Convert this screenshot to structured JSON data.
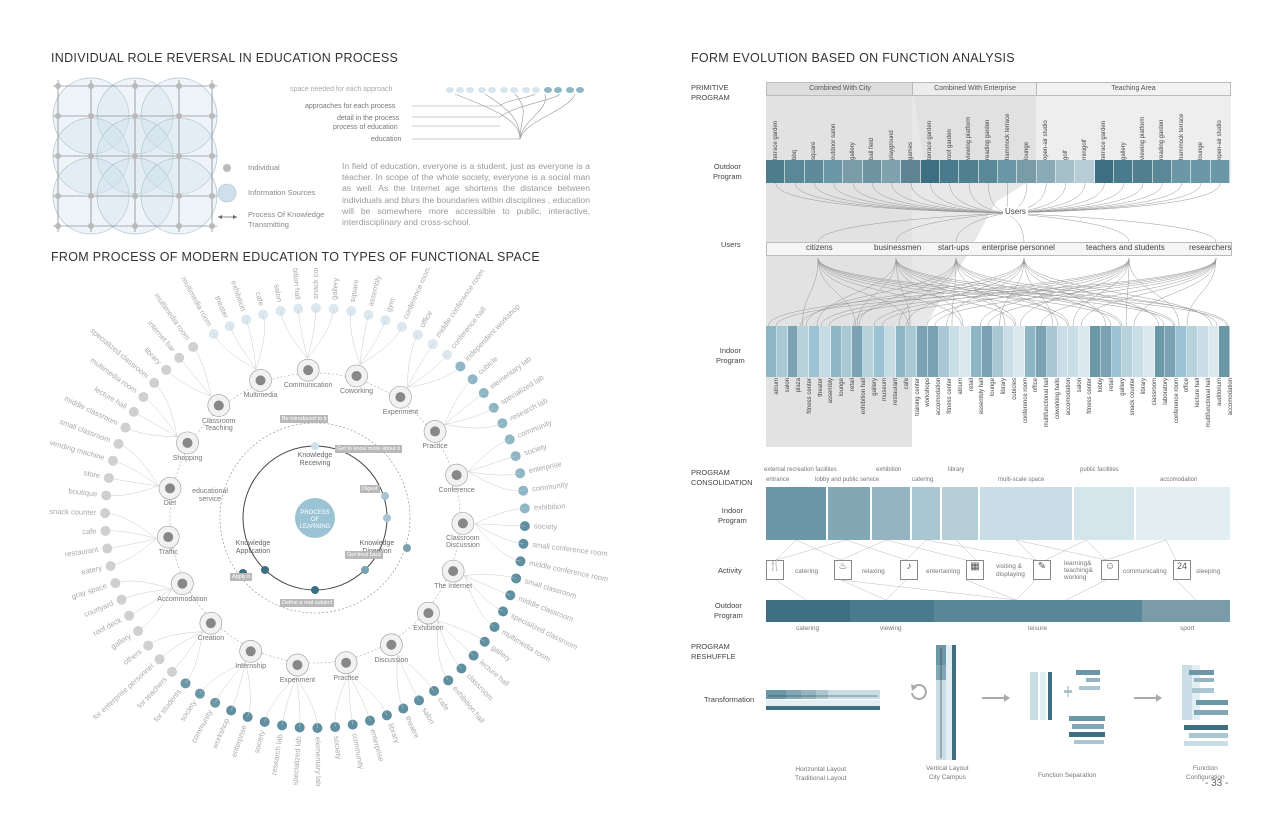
{
  "left": {
    "title1": "INDIVIDUAL ROLE REVERSAL IN EDUCATION PROCESS",
    "title2": "FROM PROCESS OF MODERN EDUCATION TO TYPES OF FUNCTIONAL SPACE",
    "tree_labels": [
      "space needed for each approach",
      "approaches for each process",
      "detail in the process",
      "process of education",
      "education"
    ],
    "legend": {
      "individual": "Individual",
      "info": "Information Sources",
      "process_line1": "Process Of Knowledge",
      "process_line2": "Transmitting"
    },
    "paragraph": "In field of education, everyone is a student, just as everyone is a teacher. In scope of the whole society, everyone is a social man as well. As the Internet age shortens the distance between individuals and  blurs the boundaries within disciplines , education will be somewhere more accessible to public, interactive, interdisciplinary and cross-school.",
    "center": {
      "line1": "PROCESS",
      "line2": "OF",
      "line3": "LEARNING"
    },
    "inner_labels": [
      "Knowledge Receiving",
      "Knowledge Digestion",
      "Knowledge Application"
    ],
    "ring_tags": [
      "Be introduced to it",
      "Get to know more about it",
      "Digest",
      "Get feed back",
      "Define a real subject",
      "Apply it"
    ],
    "educational_service": "educational service",
    "nodes": [
      "Multimedia",
      "Communication",
      "Coworking",
      "Experiment",
      "Practice",
      "Conference",
      "Classroom Discussion",
      "The Internet",
      "Exhibition",
      "Discussion",
      "Practice",
      "Experiment",
      "Internship",
      "Creation",
      "Accommodation",
      "Traffic",
      "Diet",
      "Shopping",
      "Classroom Teaching"
    ],
    "outer": [
      "multimedia room",
      "theater",
      "exhibition",
      "cafe",
      "salon",
      "exhibition hall",
      "snack counter",
      "gallery",
      "square",
      "assembly",
      "gym",
      "conference room",
      "office",
      "middle conference room",
      "conference hall",
      "independent workshop",
      "cubicle",
      "elementary lab",
      "specialized lab",
      "research lab",
      "community",
      "society",
      "enterprise",
      "community",
      "exhibition",
      "society",
      "small conference room",
      "middle conference room",
      "small classroom",
      "middle classroom",
      "specialized classroom",
      "multimedia room",
      "gallery",
      "lecture hall",
      "classroom",
      "exhibition hall",
      "cafe",
      "salon",
      "theatre",
      "library",
      "enterprise",
      "community",
      "society",
      "elementary lab",
      "specialized lab",
      "research lab",
      "society",
      "enterprise",
      "workshop",
      "community",
      "society",
      "for students",
      "for teachers",
      "for enterprise personnel",
      "others",
      "gallery",
      "roof deck",
      "courtyard",
      "gray space",
      "eatery",
      "restaurant",
      "cafe",
      "snack counter",
      "boutique",
      "store",
      "vending machine",
      "small classroom",
      "middle classroom",
      "lecture hall",
      "multimedia room",
      "specialized classroom",
      "library",
      "internet bar",
      "multimedia room"
    ]
  },
  "right": {
    "title": "FORM EVOLUTION BASED ON FUNCTION ANALYSIS",
    "sec1_l1": "PRIMITIVE",
    "sec1_l2": "PROGRAM",
    "headers": [
      "Combined With City",
      "Combined With Enterprise",
      "Teaching Area"
    ],
    "outdoor_l1": "Outdoor",
    "outdoor_l2": "Program",
    "outdoor_items": [
      "terrace garden",
      "bbq",
      "square",
      "outdoor salon",
      "gallery",
      "ball field",
      "playground",
      "games",
      "terrace garden",
      "roof garden",
      "viewing platform",
      "reading garden",
      "hammock terrace",
      "lounge",
      "open-air studio",
      "golf",
      "minigolf",
      "terrace garden",
      "gallery",
      "viewing platform",
      "reading garden",
      "hammock terrace",
      "lounge",
      "open-air studio"
    ],
    "users_center": "Users",
    "users_label": "Users",
    "user_groups": [
      "citizens",
      "businessmen",
      "start-ups",
      "enterprise personnel",
      "teachers and students",
      "researchers"
    ],
    "indoor_l1": "Indoor",
    "indoor_l2": "Program",
    "indoor_items": [
      "atrium",
      "salon",
      "plaza",
      "fitness center",
      "theater",
      "assembly",
      "lounge",
      "retail",
      "exhibition hall",
      "gallery",
      "museum",
      "restaurant",
      "cafe",
      "training center",
      "workshops",
      "accomodation",
      "fitness center",
      "atrium",
      "retail",
      "assembly hall",
      "lounge",
      "library",
      "cubicles",
      "conference room",
      "office",
      "multifunctional hall",
      "coworking halls",
      "accomodation",
      "salon",
      "fitness center",
      "lobby",
      "retail",
      "gallery",
      "snack counter",
      "library",
      "classroom",
      "laboratory",
      "conference room",
      "office",
      "lecture hall",
      "multifunctional hall",
      "auditorium",
      "accomodation"
    ],
    "sec2_l1": "PROGRAM",
    "sec2_l2": "CONSOLIDATION",
    "cons_top": [
      "external recreation facilities",
      "exhibition",
      "library",
      "public facilities"
    ],
    "cons_bottom": [
      "entrance",
      "lobby and public service",
      "catering",
      "multi-scale space",
      "accomodation"
    ],
    "activity_label": "Activity",
    "activities": [
      "catering",
      "relaxing",
      "entertaining",
      "visiting & displaying",
      "learning& teaching& working",
      "communicating",
      "sleeping"
    ],
    "outdoor_cons": [
      "catering",
      "viewing",
      "leisure",
      "sport"
    ],
    "sec3_l1": "PROGRAM",
    "sec3_l2": "RESHUFFLE",
    "transformation": "Transformation",
    "captions": [
      [
        "Horizontal Layout",
        "Traditional Layout"
      ],
      [
        "Vertical Layout",
        "City Campus"
      ],
      [
        "Function Separation",
        ""
      ],
      [
        "Function",
        "Configuration"
      ]
    ],
    "page_number": "- 33 -"
  },
  "colors": {
    "teal_dark": "#3d6f80",
    "teal": "#6b97a6",
    "light_blue": "#c9dde6",
    "pale": "#e3eef3",
    "grey_band": "#e8e8e8",
    "node_grey": "#c8c8c8"
  }
}
